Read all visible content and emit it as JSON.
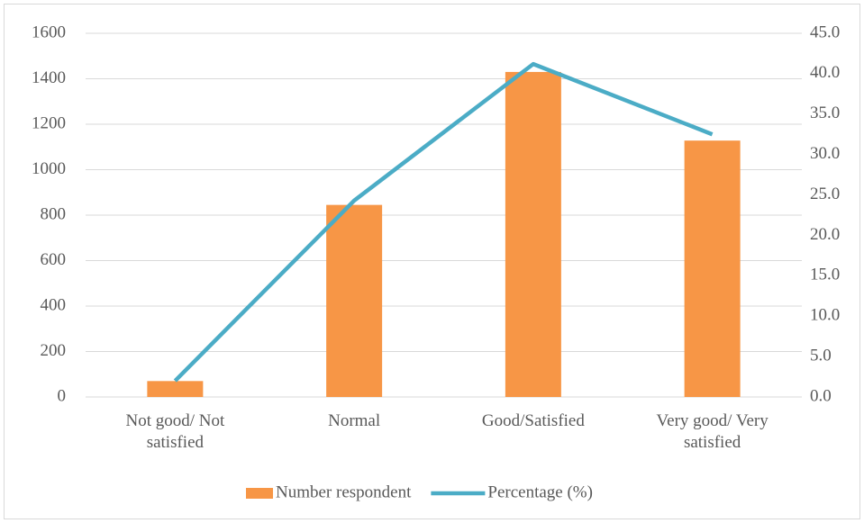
{
  "chart_data": {
    "type": "bar",
    "categories": [
      "Not good/ Not satisfied",
      "Normal",
      "Good/Satisfied",
      "Very good/ Very satisfied"
    ],
    "series": [
      {
        "name": "Number respondent",
        "type": "bar",
        "color": "#f79646",
        "values": [
          70,
          845,
          1430,
          1128
        ]
      },
      {
        "name": "Percentage (%)",
        "type": "line",
        "axis": "y2",
        "color": "#4bacc6",
        "values": [
          2.0,
          24.3,
          41.2,
          32.5
        ]
      }
    ],
    "ylim": [
      0,
      1600
    ],
    "yticks": [
      0,
      200,
      400,
      600,
      800,
      1000,
      1200,
      1400,
      1600
    ],
    "y2lim": [
      0,
      45
    ],
    "y2ticks": [
      {
        "value": 0,
        "label": "0.0"
      },
      {
        "value": 5,
        "label": "5.0"
      },
      {
        "value": 10,
        "label": "10.0"
      },
      {
        "value": 15,
        "label": "15.0"
      },
      {
        "value": 20,
        "label": "20.0"
      },
      {
        "value": 25,
        "label": "25.0"
      },
      {
        "value": 30,
        "label": "30.0"
      },
      {
        "value": 35,
        "label": "35.0"
      },
      {
        "value": 40,
        "label": "40.0"
      },
      {
        "value": 45,
        "label": "45.0"
      }
    ],
    "grid": true,
    "legend": "bottom"
  }
}
